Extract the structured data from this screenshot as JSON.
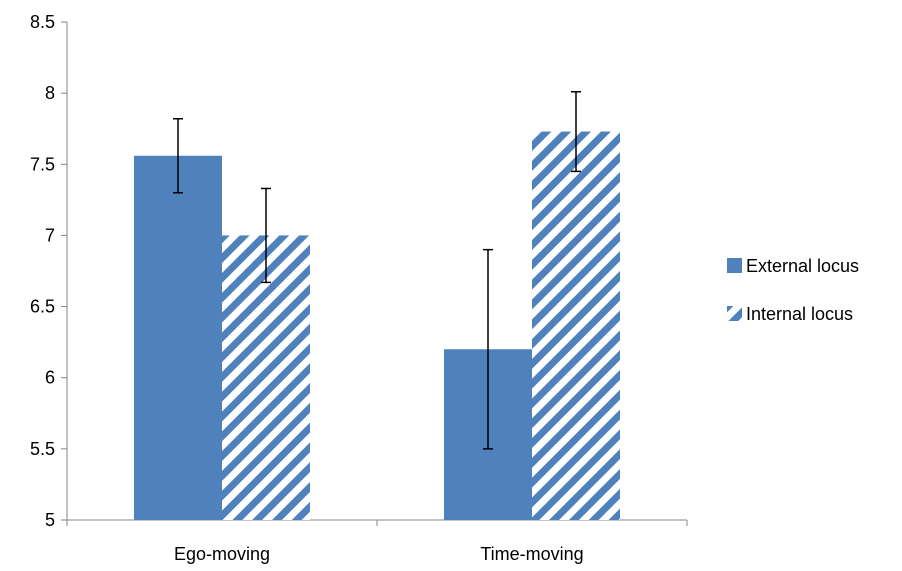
{
  "chart_data": {
    "type": "bar",
    "categories": [
      "Ego-moving",
      "Time-moving"
    ],
    "series": [
      {
        "name": "External locus",
        "values": [
          7.56,
          6.2
        ],
        "error_low": [
          7.3,
          5.5
        ],
        "error_high": [
          7.82,
          6.9
        ],
        "color": "#4f81bd",
        "fill": "solid"
      },
      {
        "name": "Internal locus",
        "values": [
          7.0,
          7.73
        ],
        "error_low": [
          6.67,
          7.45
        ],
        "error_high": [
          7.33,
          8.01
        ],
        "color": "#4f81bd",
        "fill": "diagonal-stripes"
      }
    ],
    "title": "",
    "xlabel": "",
    "ylabel": "",
    "ylim": [
      5,
      8.5
    ],
    "yticks": [
      "5",
      "5.5",
      "6",
      "6.5",
      "7",
      "7.5",
      "8",
      "8.5"
    ],
    "grid": false,
    "legend": "right"
  }
}
